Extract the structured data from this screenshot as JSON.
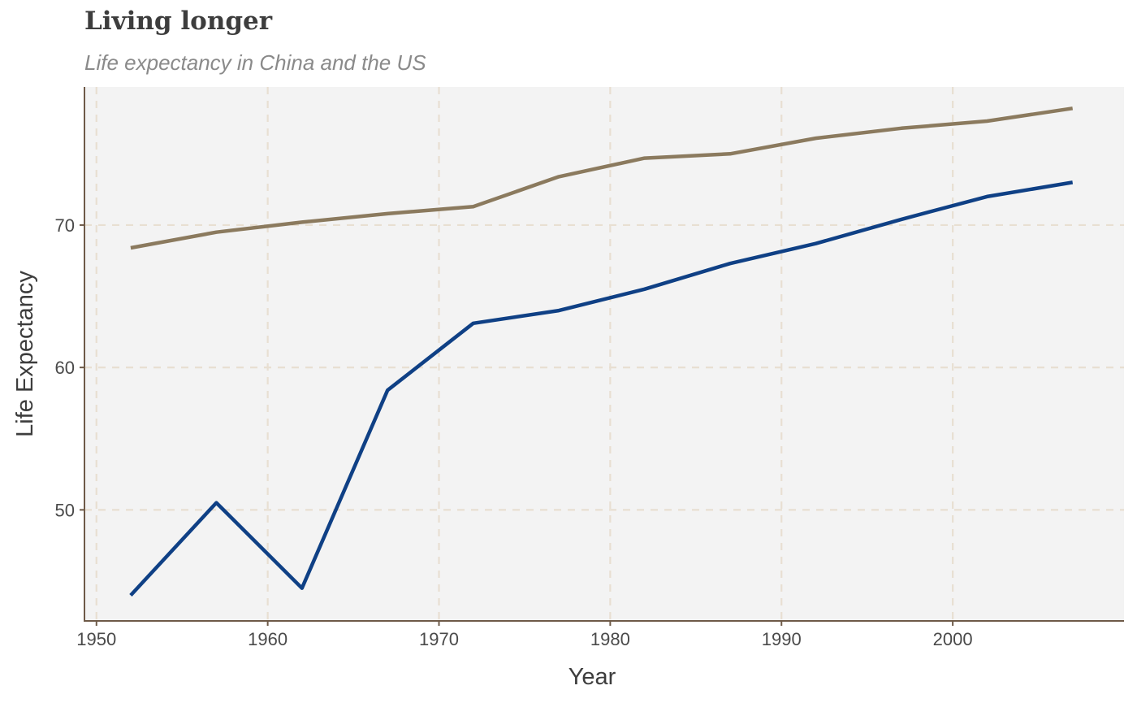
{
  "chart_data": {
    "type": "line",
    "title": "Living longer",
    "subtitle": "Life expectancy in China and the US",
    "xlabel": "Year",
    "ylabel": "Life Expectancy",
    "x": [
      1952,
      1957,
      1962,
      1967,
      1972,
      1977,
      1982,
      1987,
      1992,
      1997,
      2002,
      2007
    ],
    "series": [
      {
        "color": "#8b7a5e",
        "values": [
          68.4,
          69.5,
          70.2,
          70.8,
          71.3,
          73.4,
          74.7,
          75.0,
          76.1,
          76.8,
          77.3,
          78.2
        ]
      },
      {
        "color": "#0f4085",
        "values": [
          44.0,
          50.5,
          44.5,
          58.4,
          63.1,
          64.0,
          65.5,
          67.3,
          68.7,
          70.4,
          72.0,
          73.0
        ]
      }
    ],
    "xlim": [
      1949.3,
      2010
    ],
    "ylim": [
      42.2,
      79.7
    ],
    "xticks": [
      1950,
      1960,
      1970,
      1980,
      1990,
      2000
    ],
    "yticks": [
      50,
      60,
      70
    ],
    "grid": true,
    "background": "#f3f3f3",
    "grid_color": "#e8dfd2",
    "axis_color": "#6e5a48"
  }
}
